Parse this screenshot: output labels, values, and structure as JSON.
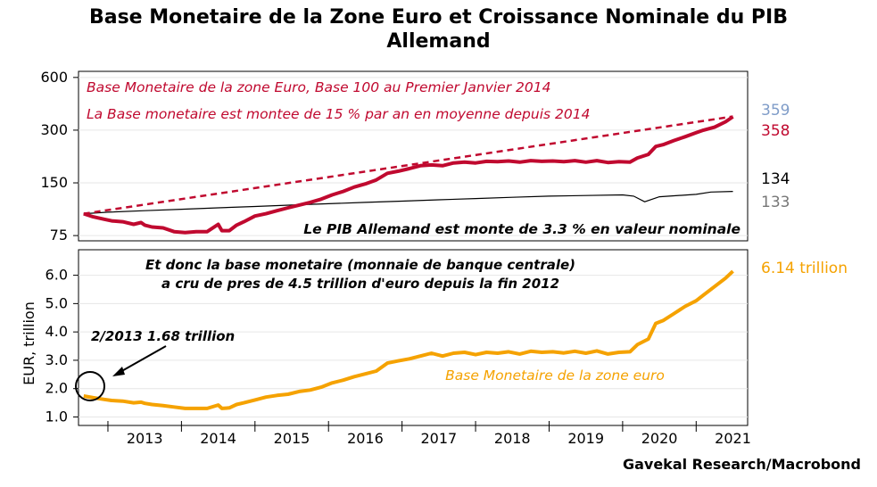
{
  "title_line1": "Base Monetaire de la Zone Euro et Croissance Nominale du PIB",
  "title_line2": "Allemand",
  "source": "Gavekal Research/Macrobond",
  "colors": {
    "base": "#c0092f",
    "gdp": "#000000",
    "gold": "#f5a200",
    "last_blue": "#7f9cc8",
    "last_grey": "#777777"
  },
  "chart_data": [
    {
      "type": "line",
      "panel": "top",
      "y_scale": "log",
      "ylim": [
        70,
        650
      ],
      "yticks": [
        "600",
        "300",
        "150",
        "75"
      ],
      "xlim": [
        2012.6,
        2021.7
      ],
      "annotations": [
        "Base Monetaire de la zone Euro, Base 100 au Premier Janvier 2014",
        "La Base monetaire est montee de 15 % par an en moyenne depuis 2014",
        "Le PIB Allemand est monte de 3.3 % en valeur nominale"
      ],
      "last_values": [
        "359",
        "358",
        "134",
        "133"
      ],
      "series": [
        {
          "x": [
            2012.67,
            2012.8,
            2012.95,
            2013.05,
            2013.2,
            2013.35,
            2013.45,
            2013.5,
            2013.6,
            2013.75,
            2013.9,
            2014.05,
            2014.2,
            2014.35,
            2014.5,
            2014.55,
            2014.65,
            2014.75,
            2014.85,
            2015.0,
            2015.15,
            2015.3,
            2015.45,
            2015.6,
            2015.75,
            2015.9,
            2016.05,
            2016.2,
            2016.35,
            2016.5,
            2016.65,
            2016.8,
            2016.95,
            2017.1,
            2017.25,
            2017.4,
            2017.55,
            2017.7,
            2017.85,
            2018.0,
            2018.15,
            2018.3,
            2018.45,
            2018.6,
            2018.75,
            2018.9,
            2019.05,
            2019.2,
            2019.35,
            2019.5,
            2019.65,
            2019.8,
            2019.95,
            2020.1,
            2020.2,
            2020.35,
            2020.45,
            2020.55,
            2020.7,
            2020.85,
            2021.0,
            2021.1,
            2021.25,
            2021.4,
            2021.5
          ],
          "values": [
            100,
            96,
            93,
            91,
            90,
            87,
            89,
            86,
            84,
            83,
            79,
            78,
            79,
            79,
            87,
            80,
            80,
            86,
            90,
            97,
            100,
            104,
            108,
            112,
            116,
            121,
            128,
            134,
            142,
            148,
            156,
            170,
            175,
            181,
            188,
            190,
            188,
            195,
            197,
            195,
            199,
            198,
            200,
            197,
            201,
            199,
            200,
            198,
            201,
            197,
            201,
            196,
            198,
            197,
            208,
            218,
            242,
            248,
            262,
            275,
            290,
            300,
            312,
            335,
            358
          ]
        },
        {
          "x": [
            2012.67,
            2013.0,
            2013.5,
            2014.0,
            2014.5,
            2015.0,
            2015.5,
            2016.0,
            2016.5,
            2017.0,
            2017.5,
            2018.0,
            2018.5,
            2019.0,
            2019.5,
            2020.0,
            2020.15,
            2020.3,
            2020.5,
            2021.0,
            2021.2,
            2021.5
          ],
          "values": [
            100,
            102,
            104,
            106,
            108,
            110,
            112,
            114,
            116,
            118,
            120,
            122,
            124,
            126,
            127,
            128,
            126,
            117,
            125,
            129,
            133,
            134
          ]
        },
        {
          "x": [
            2012.67,
            2021.5
          ],
          "values": [
            100,
            359
          ]
        }
      ]
    },
    {
      "type": "line",
      "panel": "bottom",
      "ylabel": "EUR, trillion",
      "ylim": [
        0.7,
        6.9
      ],
      "yticks": [
        "6.0",
        "5.0",
        "4.0",
        "3.0",
        "2.0",
        "1.0"
      ],
      "xlim": [
        2012.6,
        2021.7
      ],
      "xticks": [
        "2013",
        "2014",
        "2015",
        "2016",
        "2017",
        "2018",
        "2019",
        "2020",
        "2021"
      ],
      "annotations": [
        "Et donc la base monetaire (monnaie de banque centrale)",
        "a cru de pres de 4.5 trillion d'euro depuis la fin 2012",
        "2/2013 1.68 trillion",
        "Base Monetaire de la zone euro"
      ],
      "last_value": "6.14 trillion",
      "series": [
        {
          "x": [
            2012.67,
            2012.8,
            2012.95,
            2013.05,
            2013.2,
            2013.35,
            2013.45,
            2013.5,
            2013.6,
            2013.75,
            2013.9,
            2014.05,
            2014.2,
            2014.35,
            2014.5,
            2014.55,
            2014.65,
            2014.75,
            2014.85,
            2015.0,
            2015.15,
            2015.3,
            2015.45,
            2015.6,
            2015.75,
            2015.9,
            2016.05,
            2016.2,
            2016.35,
            2016.5,
            2016.65,
            2016.8,
            2016.95,
            2017.1,
            2017.25,
            2017.4,
            2017.55,
            2017.7,
            2017.85,
            2018.0,
            2018.15,
            2018.3,
            2018.45,
            2018.6,
            2018.75,
            2018.9,
            2019.05,
            2019.2,
            2019.35,
            2019.5,
            2019.65,
            2019.8,
            2019.95,
            2020.1,
            2020.2,
            2020.35,
            2020.45,
            2020.55,
            2020.7,
            2020.85,
            2021.0,
            2021.1,
            2021.25,
            2021.4,
            2021.5
          ],
          "values": [
            1.74,
            1.68,
            1.62,
            1.58,
            1.56,
            1.5,
            1.52,
            1.48,
            1.44,
            1.4,
            1.35,
            1.3,
            1.3,
            1.3,
            1.42,
            1.3,
            1.32,
            1.44,
            1.5,
            1.6,
            1.7,
            1.76,
            1.8,
            1.9,
            1.95,
            2.05,
            2.2,
            2.3,
            2.42,
            2.52,
            2.62,
            2.9,
            2.98,
            3.05,
            3.15,
            3.25,
            3.15,
            3.25,
            3.28,
            3.2,
            3.28,
            3.25,
            3.3,
            3.22,
            3.32,
            3.28,
            3.3,
            3.26,
            3.32,
            3.25,
            3.33,
            3.22,
            3.28,
            3.3,
            3.55,
            3.75,
            4.3,
            4.4,
            4.65,
            4.9,
            5.1,
            5.3,
            5.6,
            5.9,
            6.14
          ]
        }
      ]
    }
  ]
}
